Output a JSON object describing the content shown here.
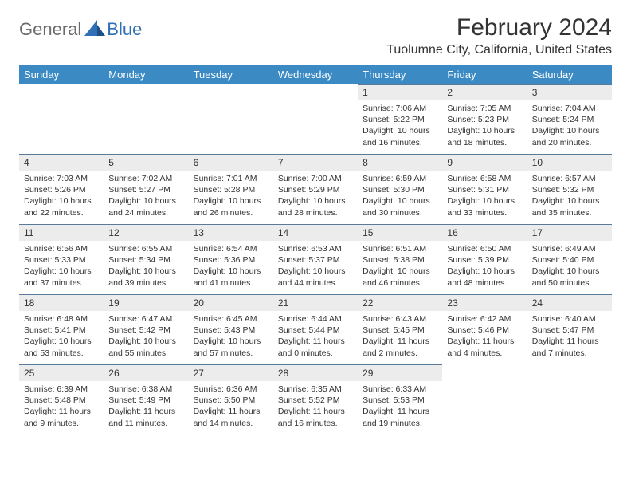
{
  "brand": {
    "part1": "General",
    "part2": "Blue"
  },
  "title": "February 2024",
  "location": "Tuolumne City, California, United States",
  "colors": {
    "header_bg": "#3b8ac4",
    "header_text": "#ffffff",
    "daynum_bg": "#ececec",
    "row_border": "#5a7a99",
    "brand_gray": "#6b6b6b",
    "brand_blue": "#2e6fb5",
    "page_bg": "#ffffff",
    "text": "#333333"
  },
  "weekdays": [
    "Sunday",
    "Monday",
    "Tuesday",
    "Wednesday",
    "Thursday",
    "Friday",
    "Saturday"
  ],
  "weeks": [
    [
      null,
      null,
      null,
      null,
      {
        "n": "1",
        "sr": "Sunrise: 7:06 AM",
        "ss": "Sunset: 5:22 PM",
        "dl": "Daylight: 10 hours and 16 minutes."
      },
      {
        "n": "2",
        "sr": "Sunrise: 7:05 AM",
        "ss": "Sunset: 5:23 PM",
        "dl": "Daylight: 10 hours and 18 minutes."
      },
      {
        "n": "3",
        "sr": "Sunrise: 7:04 AM",
        "ss": "Sunset: 5:24 PM",
        "dl": "Daylight: 10 hours and 20 minutes."
      }
    ],
    [
      {
        "n": "4",
        "sr": "Sunrise: 7:03 AM",
        "ss": "Sunset: 5:26 PM",
        "dl": "Daylight: 10 hours and 22 minutes."
      },
      {
        "n": "5",
        "sr": "Sunrise: 7:02 AM",
        "ss": "Sunset: 5:27 PM",
        "dl": "Daylight: 10 hours and 24 minutes."
      },
      {
        "n": "6",
        "sr": "Sunrise: 7:01 AM",
        "ss": "Sunset: 5:28 PM",
        "dl": "Daylight: 10 hours and 26 minutes."
      },
      {
        "n": "7",
        "sr": "Sunrise: 7:00 AM",
        "ss": "Sunset: 5:29 PM",
        "dl": "Daylight: 10 hours and 28 minutes."
      },
      {
        "n": "8",
        "sr": "Sunrise: 6:59 AM",
        "ss": "Sunset: 5:30 PM",
        "dl": "Daylight: 10 hours and 30 minutes."
      },
      {
        "n": "9",
        "sr": "Sunrise: 6:58 AM",
        "ss": "Sunset: 5:31 PM",
        "dl": "Daylight: 10 hours and 33 minutes."
      },
      {
        "n": "10",
        "sr": "Sunrise: 6:57 AM",
        "ss": "Sunset: 5:32 PM",
        "dl": "Daylight: 10 hours and 35 minutes."
      }
    ],
    [
      {
        "n": "11",
        "sr": "Sunrise: 6:56 AM",
        "ss": "Sunset: 5:33 PM",
        "dl": "Daylight: 10 hours and 37 minutes."
      },
      {
        "n": "12",
        "sr": "Sunrise: 6:55 AM",
        "ss": "Sunset: 5:34 PM",
        "dl": "Daylight: 10 hours and 39 minutes."
      },
      {
        "n": "13",
        "sr": "Sunrise: 6:54 AM",
        "ss": "Sunset: 5:36 PM",
        "dl": "Daylight: 10 hours and 41 minutes."
      },
      {
        "n": "14",
        "sr": "Sunrise: 6:53 AM",
        "ss": "Sunset: 5:37 PM",
        "dl": "Daylight: 10 hours and 44 minutes."
      },
      {
        "n": "15",
        "sr": "Sunrise: 6:51 AM",
        "ss": "Sunset: 5:38 PM",
        "dl": "Daylight: 10 hours and 46 minutes."
      },
      {
        "n": "16",
        "sr": "Sunrise: 6:50 AM",
        "ss": "Sunset: 5:39 PM",
        "dl": "Daylight: 10 hours and 48 minutes."
      },
      {
        "n": "17",
        "sr": "Sunrise: 6:49 AM",
        "ss": "Sunset: 5:40 PM",
        "dl": "Daylight: 10 hours and 50 minutes."
      }
    ],
    [
      {
        "n": "18",
        "sr": "Sunrise: 6:48 AM",
        "ss": "Sunset: 5:41 PM",
        "dl": "Daylight: 10 hours and 53 minutes."
      },
      {
        "n": "19",
        "sr": "Sunrise: 6:47 AM",
        "ss": "Sunset: 5:42 PM",
        "dl": "Daylight: 10 hours and 55 minutes."
      },
      {
        "n": "20",
        "sr": "Sunrise: 6:45 AM",
        "ss": "Sunset: 5:43 PM",
        "dl": "Daylight: 10 hours and 57 minutes."
      },
      {
        "n": "21",
        "sr": "Sunrise: 6:44 AM",
        "ss": "Sunset: 5:44 PM",
        "dl": "Daylight: 11 hours and 0 minutes."
      },
      {
        "n": "22",
        "sr": "Sunrise: 6:43 AM",
        "ss": "Sunset: 5:45 PM",
        "dl": "Daylight: 11 hours and 2 minutes."
      },
      {
        "n": "23",
        "sr": "Sunrise: 6:42 AM",
        "ss": "Sunset: 5:46 PM",
        "dl": "Daylight: 11 hours and 4 minutes."
      },
      {
        "n": "24",
        "sr": "Sunrise: 6:40 AM",
        "ss": "Sunset: 5:47 PM",
        "dl": "Daylight: 11 hours and 7 minutes."
      }
    ],
    [
      {
        "n": "25",
        "sr": "Sunrise: 6:39 AM",
        "ss": "Sunset: 5:48 PM",
        "dl": "Daylight: 11 hours and 9 minutes."
      },
      {
        "n": "26",
        "sr": "Sunrise: 6:38 AM",
        "ss": "Sunset: 5:49 PM",
        "dl": "Daylight: 11 hours and 11 minutes."
      },
      {
        "n": "27",
        "sr": "Sunrise: 6:36 AM",
        "ss": "Sunset: 5:50 PM",
        "dl": "Daylight: 11 hours and 14 minutes."
      },
      {
        "n": "28",
        "sr": "Sunrise: 6:35 AM",
        "ss": "Sunset: 5:52 PM",
        "dl": "Daylight: 11 hours and 16 minutes."
      },
      {
        "n": "29",
        "sr": "Sunrise: 6:33 AM",
        "ss": "Sunset: 5:53 PM",
        "dl": "Daylight: 11 hours and 19 minutes."
      },
      null,
      null
    ]
  ]
}
